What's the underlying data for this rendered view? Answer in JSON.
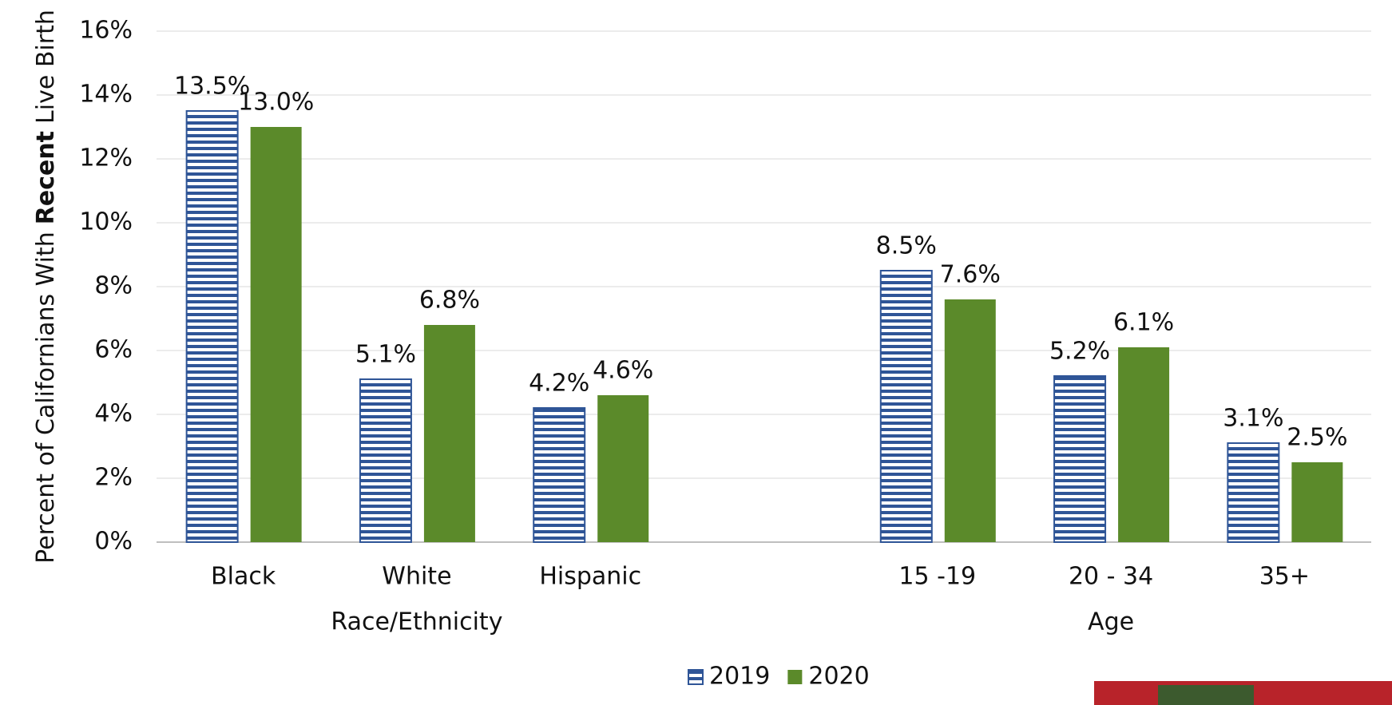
{
  "chart_data": {
    "type": "bar",
    "ylabel": [
      "Percent of Californians With",
      "Recent",
      "Live Birth"
    ],
    "categories": [
      "Black",
      "White",
      "Hispanic",
      null,
      "15 -19",
      "20 - 34",
      "35+"
    ],
    "groups": [
      "Race/Ethnicity",
      "Age"
    ],
    "series": [
      {
        "name": "2019",
        "color": "#2f5597",
        "pattern": "horizontal-stripes",
        "values": [
          13.5,
          5.1,
          4.2,
          null,
          8.5,
          5.2,
          3.1
        ],
        "value_labels": [
          "13.5%",
          "5.1%",
          "4.2%",
          null,
          "8.5%",
          "5.2%",
          "3.1%"
        ]
      },
      {
        "name": "2020",
        "color": "#5b8a2a",
        "values": [
          13.0,
          6.8,
          4.6,
          null,
          7.6,
          6.1,
          2.5
        ],
        "value_labels": [
          "13.0%",
          "6.8%",
          "4.6%",
          null,
          "7.6%",
          "6.1%",
          "2.5%"
        ]
      }
    ],
    "ylim": [
      0,
      16
    ],
    "yticks": [
      {
        "value": 0,
        "label": "0%"
      },
      {
        "value": 2,
        "label": "2%"
      },
      {
        "value": 4,
        "label": "4%"
      },
      {
        "value": 6,
        "label": "6%"
      },
      {
        "value": 8,
        "label": "8%"
      },
      {
        "value": 10,
        "label": "10%"
      },
      {
        "value": 12,
        "label": "12%"
      },
      {
        "value": 14,
        "label": "14%"
      },
      {
        "value": 16,
        "label": "16%"
      }
    ],
    "grid": true,
    "legend": "bottom"
  }
}
